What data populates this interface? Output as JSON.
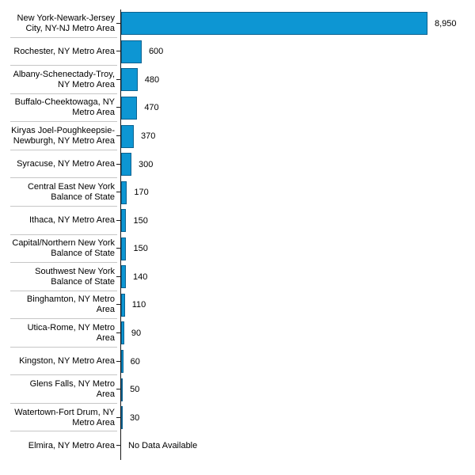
{
  "chart_data": {
    "type": "bar",
    "orientation": "horizontal",
    "title": "",
    "xlabel": "",
    "ylabel": "",
    "grid": false,
    "legend": false,
    "axis_max": 8950,
    "xlim": [
      0,
      8950
    ],
    "no_data_text": "No Data Available",
    "categories": [
      "New York-Newark-Jersey City, NY-NJ Metro Area",
      "Rochester, NY Metro Area",
      "Albany-Schenectady-Troy, NY Metro Area",
      "Buffalo-Cheektowaga, NY Metro Area",
      "Kiryas Joel-Poughkeepsie-Newburgh, NY Metro Area",
      "Syracuse, NY Metro Area",
      "Central East New York Balance of State",
      "Ithaca, NY Metro Area",
      "Capital/Northern New York Balance of State",
      "Southwest New York Balance of State",
      "Binghamton, NY Metro Area",
      "Utica-Rome, NY Metro Area",
      "Kingston, NY Metro Area",
      "Glens Falls, NY Metro Area",
      "Watertown-Fort Drum, NY Metro Area",
      "Elmira, NY Metro Area"
    ],
    "category_lines": [
      [
        "New York-Newark-Jersey",
        "City, NY-NJ Metro Area"
      ],
      [
        "Rochester, NY Metro Area"
      ],
      [
        "Albany-Schenectady-Troy,",
        "NY Metro Area"
      ],
      [
        "Buffalo-Cheektowaga, NY",
        "Metro Area"
      ],
      [
        "Kiryas Joel-Poughkeepsie-",
        "Newburgh, NY Metro Area"
      ],
      [
        "Syracuse, NY Metro Area"
      ],
      [
        "Central East New York",
        "Balance of State"
      ],
      [
        "Ithaca, NY Metro Area"
      ],
      [
        "Capital/Northern New York",
        "Balance of State"
      ],
      [
        "Southwest New York",
        "Balance of State"
      ],
      [
        "Binghamton, NY Metro",
        "Area"
      ],
      [
        "Utica-Rome, NY Metro",
        "Area"
      ],
      [
        "Kingston, NY Metro Area"
      ],
      [
        "Glens Falls, NY Metro",
        "Area"
      ],
      [
        "Watertown-Fort Drum, NY",
        "Metro Area"
      ],
      [
        "Elmira, NY Metro Area"
      ]
    ],
    "values": [
      8950,
      600,
      480,
      470,
      370,
      300,
      170,
      150,
      150,
      140,
      110,
      90,
      60,
      50,
      30,
      null
    ],
    "value_labels": [
      "8,950",
      "600",
      "480",
      "470",
      "370",
      "300",
      "170",
      "150",
      "150",
      "140",
      "110",
      "90",
      "60",
      "50",
      "30",
      "No Data Available"
    ]
  },
  "colors": {
    "bar_fill": "#0d96d3",
    "bar_border": "#0c6290",
    "axis": "#1a1a1a",
    "tick": "#1a1a1a",
    "separator": "#c6c6c6",
    "text": "#000000",
    "background": "#ffffff"
  }
}
